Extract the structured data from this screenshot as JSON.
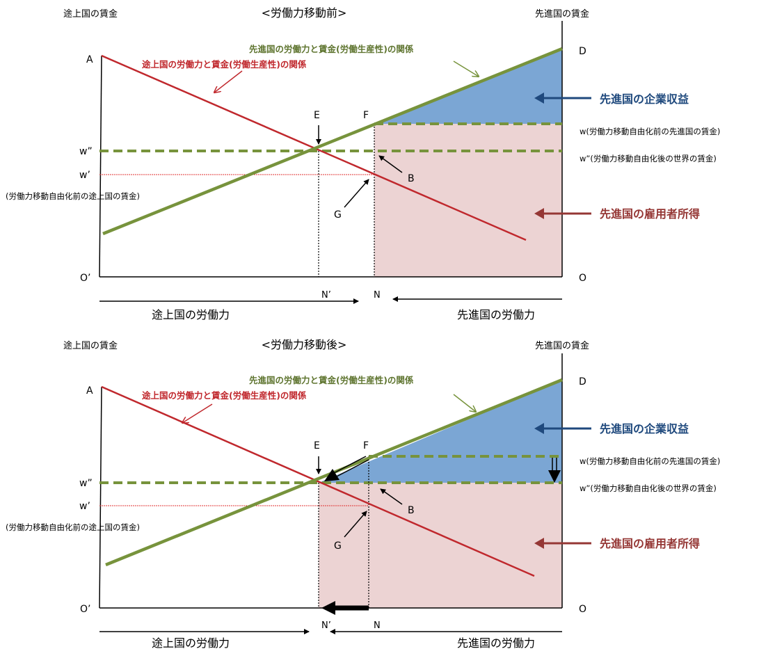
{
  "colors": {
    "red": "#c0282d",
    "green": "#77933c",
    "blue": "#6f9fd0",
    "pink": "#ecd3d3",
    "navy": "#1f497d",
    "darkred": "#953735"
  },
  "panels": [
    {
      "title": "<労働力移動前>",
      "left_axis_title": "途上国の賃金",
      "right_axis_title": "先進国の賃金",
      "points": {
        "A": "A",
        "D": "D",
        "E": "E",
        "F": "F",
        "B": "B",
        "G": "G",
        "O_left": "O’",
        "O_right": "O",
        "N_prime": "N’",
        "N": "N"
      },
      "w_double": "w”",
      "w_prime": "w’",
      "w_prime_note": "(労働力移動自由化前の途上国の賃金)",
      "w_label": "w(労働力移動自由化前の先進国の賃金)",
      "w_double_label": "w”(労働力移動自由化後の世界の賃金)",
      "developing_curve_label": "途上国の労働力と賃金(労働生産性)の関係",
      "advanced_curve_label": "先進国の労働力と賃金(労働生産性)の関係",
      "corporate_profit_label": "先進国の企業収益",
      "employee_income_label": "先進国の雇用者所得",
      "developing_labor": "途上国の労働力",
      "advanced_labor": "先進国の労働力"
    },
    {
      "title": "<労働力移動後>",
      "left_axis_title": "途上国の賃金",
      "right_axis_title": "先進国の賃金",
      "points": {
        "A": "A",
        "D": "D",
        "E": "E",
        "F": "F",
        "B": "B",
        "G": "G",
        "O_left": "O’",
        "O_right": "O",
        "N_prime": "N’",
        "N": "N"
      },
      "w_double": "w”",
      "w_prime": "w’",
      "w_prime_note": "(労働力移動自由化前の途上国の賃金)",
      "w_label": "w(労働力移動自由化前の先進国の賃金)",
      "w_double_label": "w”(労働力移動自由化後の世界の賃金)",
      "developing_curve_label": "途上国の労働力と賃金(労働生産性)の関係",
      "advanced_curve_label": "先進国の労働力と賃金(労働生産性)の関係",
      "corporate_profit_label": "先進国の企業収益",
      "employee_income_label": "先進国の雇用者所得",
      "developing_labor": "途上国の労働力",
      "advanced_labor": "先進国の労働力"
    }
  ]
}
